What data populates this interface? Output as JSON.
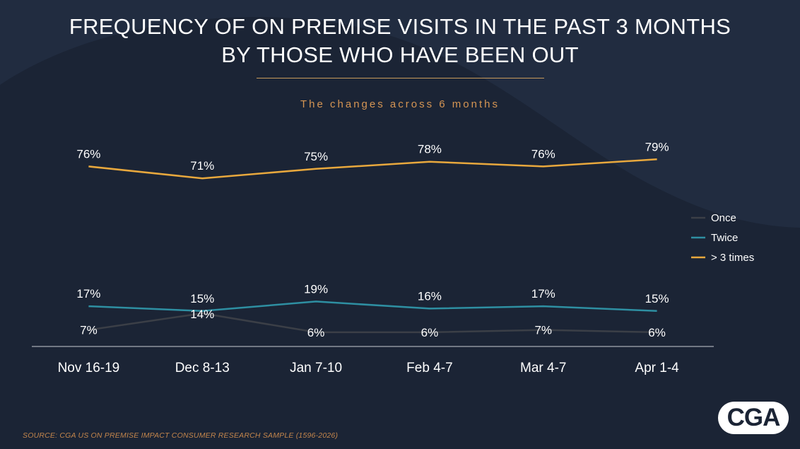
{
  "header": {
    "title_line1": "FREQUENCY OF ON PREMISE VISITS IN THE PAST 3 MONTHS",
    "title_line2": "BY THOSE WHO HAVE BEEN OUT",
    "subtitle": "The changes across 6 months"
  },
  "footer": {
    "source": "SOURCE: CGA US ON PREMISE IMPACT CONSUMER RESEARCH SAMPLE (1596-2026)",
    "logo_text": "CGA"
  },
  "chart_data": {
    "type": "line",
    "title": "FREQUENCY OF ON PREMISE VISITS IN THE PAST 3 MONTHS BY THOSE WHO HAVE BEEN OUT",
    "subtitle": "The changes across 6 months",
    "categories": [
      "Nov 16-19",
      "Dec 8-13",
      "Jan 7-10",
      "Feb 4-7",
      "Mar 4-7",
      "Apr 1-4"
    ],
    "series": [
      {
        "name": "Once",
        "color": "#3b3f47",
        "values": [
          7,
          14,
          6,
          6,
          7,
          6
        ],
        "labels": [
          "7%",
          "14%",
          "6%",
          "6%",
          "7%",
          "6%"
        ]
      },
      {
        "name": "Twice",
        "color": "#2e8fa2",
        "values": [
          17,
          15,
          19,
          16,
          17,
          15
        ],
        "labels": [
          "17%",
          "15%",
          "19%",
          "16%",
          "17%",
          "15%"
        ]
      },
      {
        "name": "> 3 times",
        "color": "#e8a83d",
        "values": [
          76,
          71,
          75,
          78,
          76,
          79
        ],
        "labels": [
          "76%",
          "71%",
          "75%",
          "78%",
          "76%",
          "79%"
        ]
      }
    ],
    "ylim": [
      0,
      85
    ],
    "grid": false,
    "legend_position": "right"
  }
}
